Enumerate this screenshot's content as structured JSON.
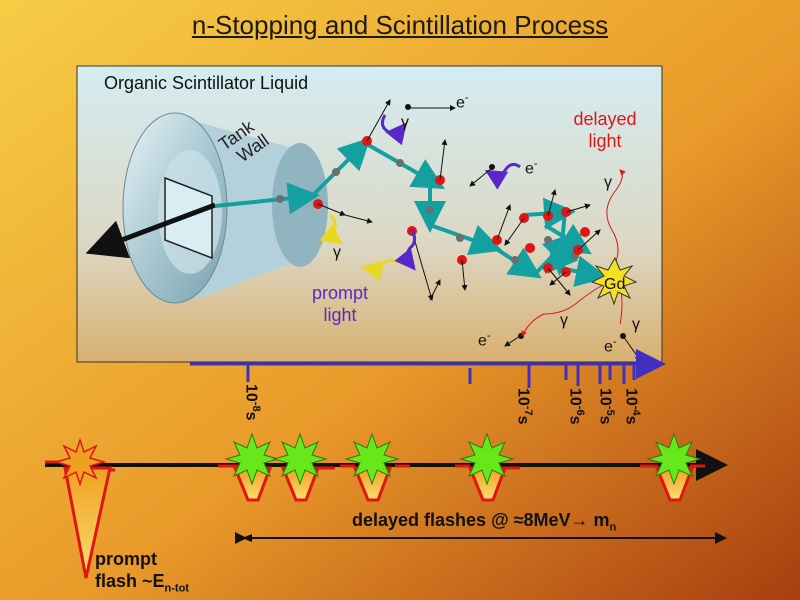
{
  "title": "n-Stopping and Scintillation Process",
  "scintillator_label": "Organic Scintillator Liquid",
  "tank_wall_line1": "Tank",
  "tank_wall_line2": "Wall",
  "delayed_light_line1": "delayed",
  "delayed_light_line2": "light",
  "prompt_light_line1": "prompt",
  "prompt_light_line2": "light",
  "gamma": "γ",
  "electron": "e",
  "electron_sup": "-",
  "gd_label": "Gd",
  "time_ticks": [
    {
      "base": "10",
      "exp": "-8",
      "unit": "s"
    },
    {
      "base": "10",
      "exp": "-7",
      "unit": "s"
    },
    {
      "base": "10",
      "exp": "-6",
      "unit": "s"
    },
    {
      "base": "10",
      "exp": "-5",
      "unit": "s"
    },
    {
      "base": "10",
      "exp": "-4",
      "unit": "s"
    }
  ],
  "delayed_flashes_text": "delayed flashes @ ≈8MeV→ m",
  "delayed_flashes_sub": "n",
  "prompt_flash_line1": "prompt",
  "prompt_flash_line2": "flash ~E",
  "prompt_flash_sub": "n-tot",
  "colors": {
    "background_start": "#f4c43c",
    "background_end": "#b44a10",
    "panel": "#cfe4ea",
    "neutron_path": "#14a0a0",
    "nucleus": "#e01515",
    "prompt_photon": "#5a28c8",
    "delayed_photon": "#e01515",
    "flash_star": "#66e81a",
    "timeline_arrow": "#4030c0"
  }
}
